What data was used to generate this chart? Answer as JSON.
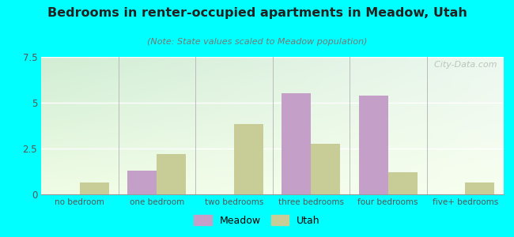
{
  "title": "Bedrooms in renter-occupied apartments in Meadow, Utah",
  "subtitle": "(Note: State values scaled to Meadow population)",
  "categories": [
    "no bedroom",
    "one bedroom",
    "two bedrooms",
    "three bedrooms",
    "four bedrooms",
    "five+ bedrooms"
  ],
  "meadow_values": [
    0,
    1.3,
    0,
    5.5,
    5.4,
    0
  ],
  "utah_values": [
    0.65,
    2.2,
    3.85,
    2.75,
    1.2,
    0.65
  ],
  "meadow_color": "#c4a0c8",
  "utah_color": "#c8cc96",
  "ylim": [
    0,
    7.5
  ],
  "yticks": [
    0,
    2.5,
    5,
    7.5
  ],
  "bar_width": 0.38,
  "fig_background": "#00ffff",
  "watermark": "  City-Data.com",
  "legend_meadow": "Meadow",
  "legend_utah": "Utah",
  "title_color": "#222222",
  "subtitle_color": "#777777",
  "tick_color": "#555555"
}
